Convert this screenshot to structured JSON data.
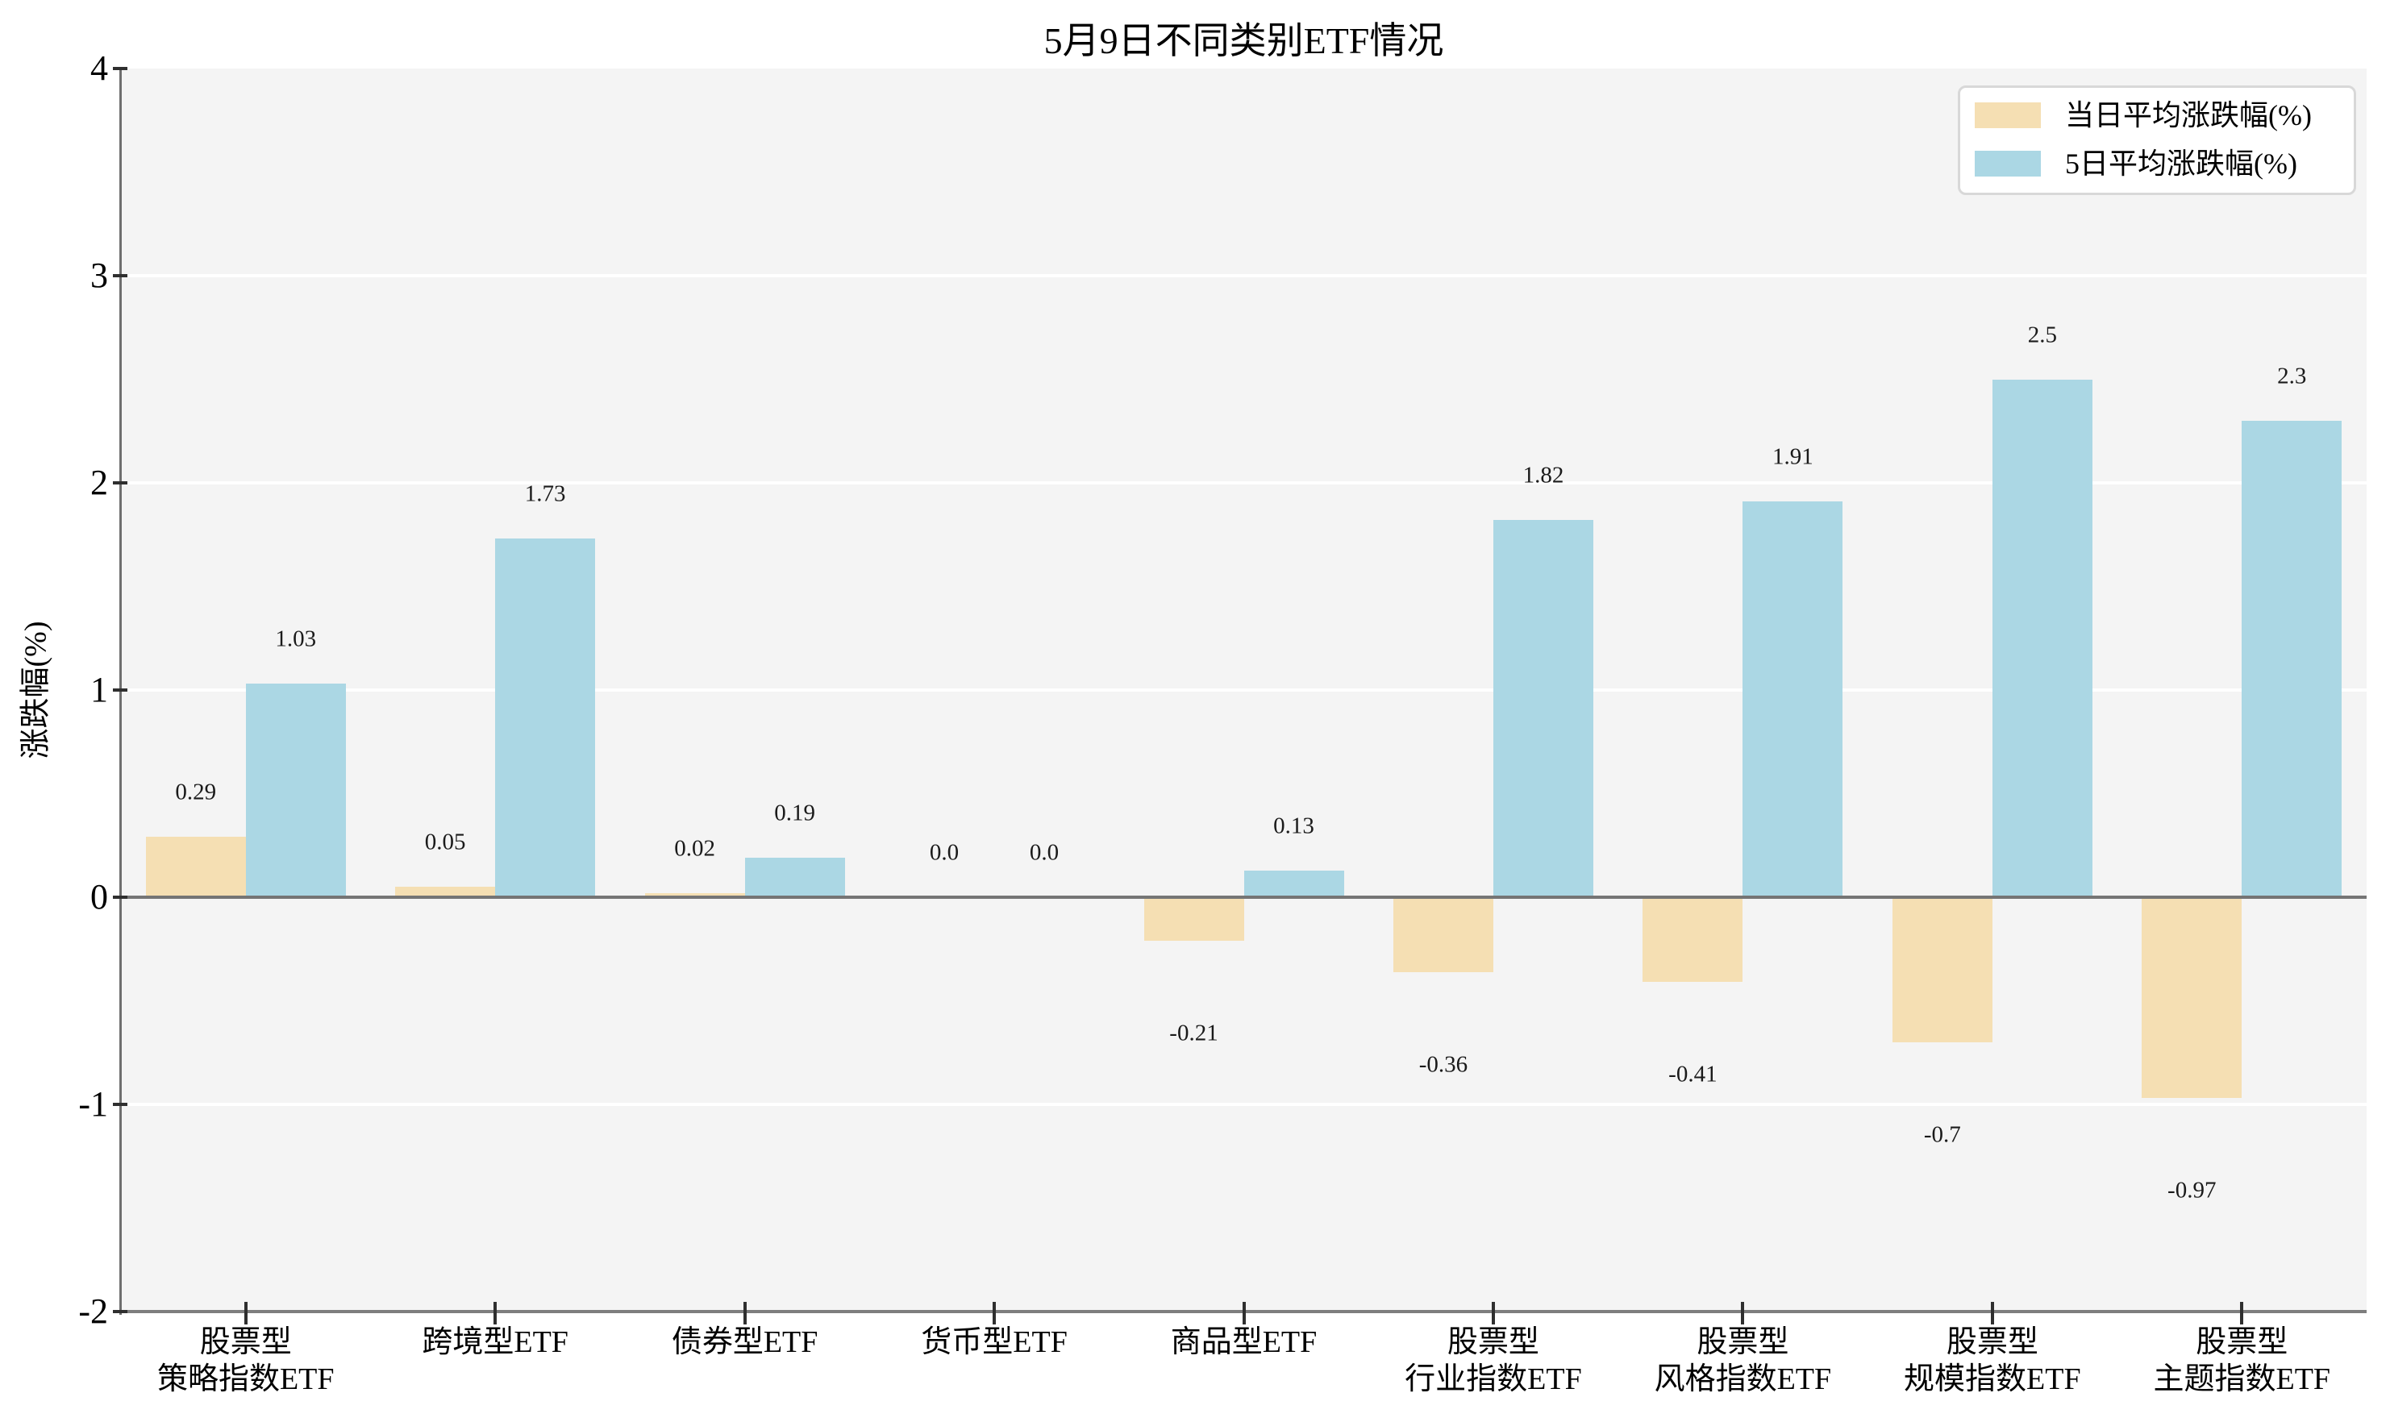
{
  "title": "5月9日不同类别ETF情况",
  "chart_data": {
    "type": "bar",
    "title": "5月9日不同类别ETF情况",
    "xlabel": "",
    "ylabel": "涨跌幅(%)",
    "ylim": [
      -2,
      4
    ],
    "yticks": [
      -2,
      -1,
      0,
      1,
      2,
      3,
      4
    ],
    "ytick_labels": [
      "-2",
      "-1",
      "0",
      "1",
      "2",
      "3",
      "4"
    ],
    "gridlines_at": [
      -1,
      1,
      2,
      3
    ],
    "grid": true,
    "legend_position": "upper right",
    "plot_bg_color": "#f4f4f4",
    "grid_color": "#ffffff",
    "categories": [
      "股票型\n策略指数ETF",
      "跨境型ETF",
      "债券型ETF",
      "货币型ETF",
      "商品型ETF",
      "股票型\n行业指数ETF",
      "股票型\n风格指数ETF",
      "股票型\n规模指数ETF",
      "股票型\n主题指数ETF"
    ],
    "series": [
      {
        "name": "当日平均涨跌幅(%)",
        "color": "#f5dfb3",
        "values": [
          0.29,
          0.05,
          0.02,
          0.0,
          -0.21,
          -0.36,
          -0.41,
          -0.7,
          -0.97
        ],
        "labels": [
          "0.29",
          "0.05",
          "0.02",
          "0.0",
          "-0.21",
          "-0.36",
          "-0.41",
          "-0.7",
          "-0.97"
        ]
      },
      {
        "name": "5日平均涨跌幅(%)",
        "color": "#abd7e4",
        "values": [
          1.03,
          1.73,
          0.19,
          0.0,
          0.13,
          1.82,
          1.91,
          2.5,
          2.3
        ],
        "labels": [
          "1.03",
          "1.73",
          "0.19",
          "0.0",
          "0.13",
          "1.82",
          "1.91",
          "2.5",
          "2.3"
        ]
      }
    ]
  }
}
